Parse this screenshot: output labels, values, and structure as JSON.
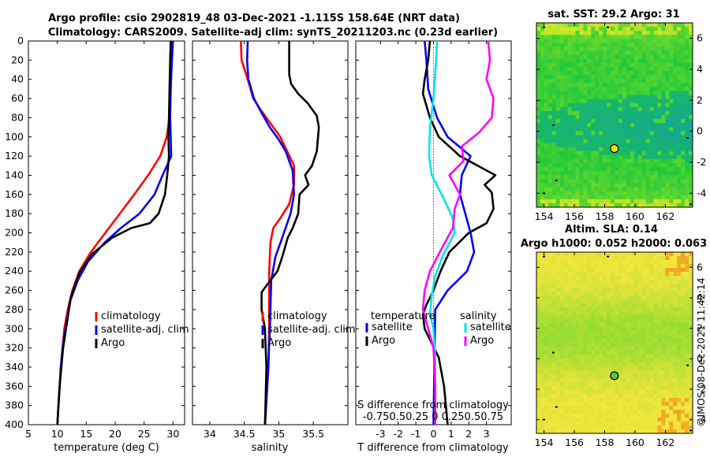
{
  "figure": {
    "title_line1": "Argo profile: csio 2902819_48 03-Dec-2021 -1.115S 158.64E (NRT data)",
    "title_line2": "Climatology: CARS2009. Satellite-adj clim: synTS_20211203.nc (0.23d earlier)",
    "timestamp": "©IMOS 08-Dec-2021 11:42:14"
  },
  "colors": {
    "climatology": "#ff0000",
    "satellite": "#0000ff",
    "argo": "#000000",
    "salinity_diff_argo": "#ff00ff",
    "salinity_diff_sat": "#00e5e5"
  },
  "chart_data": [
    {
      "type": "line",
      "id": "temperature",
      "xlabel": "temperature (deg C)",
      "ylabel": "",
      "xlim": [
        5,
        32
      ],
      "ylim": [
        0,
        400
      ],
      "y_reversed": true,
      "x_ticks": [
        "5",
        "10",
        "15",
        "20",
        "25",
        "30"
      ],
      "x_tick_values": [
        5,
        10,
        15,
        20,
        25,
        30
      ],
      "y_ticks": [
        "0",
        "20",
        "40",
        "60",
        "80",
        "100",
        "120",
        "140",
        "160",
        "180",
        "200",
        "220",
        "240",
        "260",
        "280",
        "300",
        "320",
        "340",
        "360",
        "380",
        "400"
      ],
      "y_tick_values": [
        0,
        20,
        40,
        60,
        80,
        100,
        120,
        140,
        160,
        180,
        200,
        220,
        240,
        260,
        280,
        300,
        320,
        340,
        360,
        380,
        400
      ],
      "legend": [
        "climatology",
        "satellite-adj. clim",
        "Argo"
      ],
      "legend_location": "lower-right",
      "series": [
        {
          "name": "climatology",
          "color": "#ff0000",
          "points": [
            [
              29.8,
              0
            ],
            [
              29.7,
              20
            ],
            [
              29.6,
              50
            ],
            [
              29.4,
              80
            ],
            [
              28.9,
              100
            ],
            [
              27.8,
              120
            ],
            [
              25.7,
              140
            ],
            [
              23.3,
              160
            ],
            [
              20.8,
              180
            ],
            [
              18.3,
              200
            ],
            [
              15.8,
              220
            ],
            [
              13.8,
              240
            ],
            [
              12.6,
              260
            ],
            [
              11.8,
              280
            ],
            [
              11.2,
              300
            ],
            [
              10.9,
              320
            ],
            [
              10.6,
              340
            ],
            [
              10.4,
              360
            ],
            [
              10.2,
              380
            ],
            [
              10.0,
              400
            ]
          ]
        },
        {
          "name": "satellite-adj. clim",
          "color": "#0000ff",
          "points": [
            [
              30.0,
              0
            ],
            [
              29.8,
              20
            ],
            [
              29.6,
              50
            ],
            [
              29.5,
              80
            ],
            [
              29.6,
              100
            ],
            [
              29.7,
              120
            ],
            [
              28.2,
              140
            ],
            [
              26.8,
              160
            ],
            [
              24.2,
              180
            ],
            [
              21.0,
              195
            ],
            [
              18.2,
              210
            ],
            [
              15.3,
              230
            ],
            [
              13.5,
              250
            ],
            [
              12.3,
              270
            ],
            [
              11.4,
              300
            ],
            [
              10.9,
              320
            ],
            [
              10.6,
              340
            ],
            [
              10.4,
              360
            ],
            [
              10.2,
              380
            ],
            [
              10.0,
              400
            ]
          ]
        },
        {
          "name": "Argo",
          "color": "#000000",
          "points": [
            [
              29.6,
              0
            ],
            [
              29.5,
              20
            ],
            [
              29.4,
              50
            ],
            [
              29.3,
              80
            ],
            [
              29.2,
              100
            ],
            [
              29.3,
              120
            ],
            [
              29.0,
              140
            ],
            [
              28.6,
              160
            ],
            [
              27.5,
              180
            ],
            [
              26.0,
              190
            ],
            [
              22.8,
              195
            ],
            [
              19.5,
              205
            ],
            [
              16.0,
              222
            ],
            [
              13.8,
              242
            ],
            [
              12.3,
              268
            ],
            [
              11.5,
              300
            ],
            [
              11.0,
              320
            ],
            [
              10.7,
              340
            ],
            [
              10.4,
              360
            ],
            [
              10.2,
              380
            ],
            [
              10.0,
              400
            ]
          ]
        }
      ]
    },
    {
      "type": "line",
      "id": "salinity",
      "xlabel": "salinity",
      "ylabel": "",
      "xlim": [
        33.75,
        36.0
      ],
      "ylim": [
        0,
        400
      ],
      "y_reversed": true,
      "x_ticks": [
        "34",
        "34.5",
        "35",
        "35.5"
      ],
      "x_tick_values": [
        34,
        34.5,
        35,
        35.5
      ],
      "legend": [
        "climatology",
        "satellite-adj. clim",
        "Argo"
      ],
      "legend_location": "lower-right",
      "series": [
        {
          "name": "climatology",
          "color": "#ff0000",
          "points": [
            [
              34.45,
              0
            ],
            [
              34.46,
              20
            ],
            [
              34.55,
              40
            ],
            [
              34.63,
              60
            ],
            [
              34.72,
              70
            ],
            [
              34.87,
              85
            ],
            [
              35.02,
              100
            ],
            [
              35.12,
              115
            ],
            [
              35.22,
              130
            ],
            [
              35.22,
              150
            ],
            [
              35.15,
              170
            ],
            [
              35.02,
              185
            ],
            [
              34.92,
              195
            ],
            [
              34.88,
              210
            ],
            [
              34.86,
              240
            ],
            [
              34.86,
              300
            ],
            [
              34.85,
              340
            ],
            [
              34.8,
              400
            ]
          ]
        },
        {
          "name": "satellite-adj. clim",
          "color": "#0000ff",
          "points": [
            [
              34.55,
              0
            ],
            [
              34.54,
              20
            ],
            [
              34.56,
              40
            ],
            [
              34.64,
              60
            ],
            [
              34.75,
              75
            ],
            [
              34.87,
              90
            ],
            [
              35.0,
              103
            ],
            [
              35.1,
              115
            ],
            [
              35.2,
              135
            ],
            [
              35.22,
              160
            ],
            [
              35.17,
              180
            ],
            [
              35.05,
              205
            ],
            [
              34.95,
              225
            ],
            [
              34.89,
              250
            ],
            [
              34.87,
              300
            ],
            [
              34.84,
              350
            ],
            [
              34.8,
              400
            ]
          ]
        },
        {
          "name": "Argo",
          "color": "#000000",
          "points": [
            [
              35.15,
              0
            ],
            [
              35.15,
              20
            ],
            [
              35.15,
              35
            ],
            [
              35.18,
              45
            ],
            [
              35.28,
              55
            ],
            [
              35.42,
              65
            ],
            [
              35.55,
              78
            ],
            [
              35.58,
              90
            ],
            [
              35.55,
              115
            ],
            [
              35.48,
              130
            ],
            [
              35.38,
              140
            ],
            [
              35.43,
              150
            ],
            [
              35.3,
              160
            ],
            [
              35.28,
              180
            ],
            [
              35.2,
              195
            ],
            [
              35.13,
              205
            ],
            [
              35.05,
              225
            ],
            [
              34.98,
              240
            ],
            [
              34.82,
              255
            ],
            [
              34.75,
              262
            ],
            [
              34.75,
              280
            ],
            [
              34.8,
              300
            ],
            [
              34.82,
              340
            ],
            [
              34.8,
              400
            ]
          ]
        }
      ]
    },
    {
      "type": "line",
      "id": "differences",
      "xlabel": "T difference from climatology",
      "ylabel": "",
      "xlim": [
        -4.4,
        4.4
      ],
      "ylim": [
        0,
        400
      ],
      "y_reversed": true,
      "x_ticks": [
        "-3",
        "-2",
        "-1",
        "0",
        "1",
        "2",
        "3"
      ],
      "x_tick_values": [
        -3,
        -2,
        -1,
        0,
        1,
        2,
        3
      ],
      "legend_left_title": "temperature",
      "legend_right_title": "salinity",
      "legend_left": [
        "satellite",
        "Argo"
      ],
      "legend_right": [
        "satellite",
        "Argo"
      ],
      "bottom_note_line1": "S difference from climatology",
      "bottom_note_line2": "-0.750.50.25  0  0.250.50.75",
      "series": [
        {
          "name": "temperature satellite",
          "color": "#0000ff",
          "points": [
            [
              -0.5,
              0
            ],
            [
              -0.4,
              20
            ],
            [
              -0.3,
              50
            ],
            [
              0.2,
              80
            ],
            [
              0.8,
              100
            ],
            [
              2.1,
              120
            ],
            [
              1.6,
              140
            ],
            [
              1.5,
              160
            ],
            [
              1.8,
              180
            ],
            [
              2.1,
              200
            ],
            [
              2.3,
              220
            ],
            [
              1.9,
              240
            ],
            [
              0.8,
              260
            ],
            [
              0.1,
              280
            ],
            [
              0.0,
              400
            ]
          ]
        },
        {
          "name": "temperature Argo",
          "color": "#000000",
          "points": [
            [
              -0.2,
              0
            ],
            [
              -0.3,
              20
            ],
            [
              -0.5,
              40
            ],
            [
              -0.6,
              55
            ],
            [
              -0.2,
              80
            ],
            [
              0.3,
              100
            ],
            [
              1.5,
              120
            ],
            [
              3.5,
              140
            ],
            [
              2.9,
              150
            ],
            [
              3.3,
              158
            ],
            [
              3.4,
              175
            ],
            [
              3.0,
              190
            ],
            [
              2.0,
              200
            ],
            [
              0.9,
              220
            ],
            [
              0.4,
              240
            ],
            [
              0.0,
              260
            ],
            [
              -0.4,
              275
            ],
            [
              -0.6,
              285
            ],
            [
              -0.5,
              300
            ],
            [
              0.3,
              330
            ],
            [
              0.6,
              360
            ],
            [
              0.7,
              380
            ],
            [
              0.8,
              400
            ]
          ]
        },
        {
          "name": "salinity satellite",
          "color": "#00e5e5",
          "points": [
            [
              0.2,
              0
            ],
            [
              0.15,
              20
            ],
            [
              0.0,
              60
            ],
            [
              -0.2,
              90
            ],
            [
              -0.25,
              120
            ],
            [
              -0.1,
              140
            ],
            [
              0.6,
              165
            ],
            [
              1.1,
              185
            ],
            [
              1.2,
              200
            ],
            [
              0.5,
              225
            ],
            [
              0.1,
              245
            ],
            [
              -0.1,
              265
            ],
            [
              -0.2,
              285
            ],
            [
              0.0,
              300
            ],
            [
              0.1,
              330
            ],
            [
              0.1,
              400
            ]
          ]
        },
        {
          "name": "salinity Argo",
          "color": "#ff00ff",
          "points": [
            [
              3.1,
              0
            ],
            [
              3.2,
              20
            ],
            [
              3.0,
              40
            ],
            [
              3.4,
              60
            ],
            [
              3.3,
              80
            ],
            [
              2.6,
              95
            ],
            [
              1.6,
              110
            ],
            [
              1.7,
              125
            ],
            [
              0.9,
              140
            ],
            [
              1.5,
              160
            ],
            [
              1.2,
              175
            ],
            [
              1.1,
              195
            ],
            [
              0.5,
              215
            ],
            [
              -0.2,
              240
            ],
            [
              -0.5,
              260
            ],
            [
              -0.6,
              280
            ],
            [
              -0.3,
              300
            ],
            [
              0.0,
              320
            ],
            [
              0.1,
              360
            ],
            [
              0.1,
              400
            ]
          ]
        }
      ]
    },
    {
      "type": "heatmap",
      "id": "sst_map",
      "title": "sat. SST: 29.2 Argo: 31",
      "xlim": [
        153.5,
        163.8
      ],
      "ylim": [
        -4.9,
        7.0
      ],
      "x_ticks": [
        "154",
        "156",
        "158",
        "160",
        "162"
      ],
      "x_tick_values": [
        154,
        156,
        158,
        160,
        162
      ],
      "y_ticks": [
        "-4",
        "-2",
        "0",
        "2",
        "4",
        "6"
      ],
      "y_tick_values": [
        -4,
        -2,
        0,
        2,
        4,
        6
      ],
      "marker": {
        "lon": 158.64,
        "lat": -1.115
      }
    },
    {
      "type": "heatmap",
      "id": "sla_map",
      "title": "Altim. SLA: 0.14",
      "subtitle": "Argo h1000: 0.052 h2000: 0.063",
      "xlim": [
        153.5,
        163.8
      ],
      "ylim": [
        -4.9,
        7.0
      ],
      "x_ticks": [
        "154",
        "156",
        "158",
        "160",
        "162"
      ],
      "x_tick_values": [
        154,
        156,
        158,
        160,
        162
      ],
      "y_ticks": [
        "-4",
        "-2",
        "0",
        "2",
        "4",
        "6"
      ],
      "y_tick_values": [
        -4,
        -2,
        0,
        2,
        4,
        6
      ],
      "marker": {
        "lon": 158.64,
        "lat": -1.115
      }
    }
  ]
}
